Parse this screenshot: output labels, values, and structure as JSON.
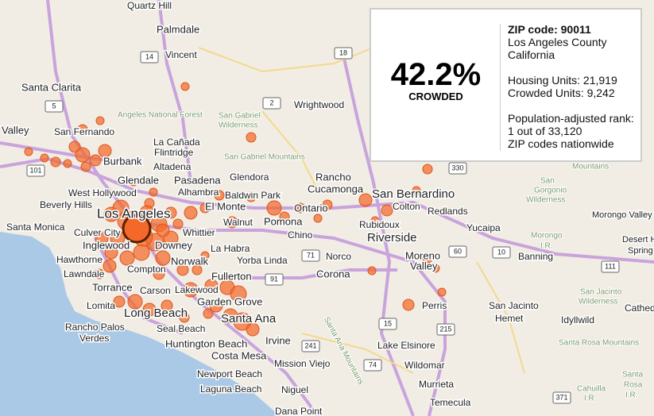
{
  "panel": {
    "value": "42.2%",
    "label": "CROWDED",
    "zip": "ZIP code: 90011",
    "county": "Los Angeles County",
    "state": "California",
    "housing": "Housing Units: 21,919",
    "crowded": "Crowded Units: 9,242",
    "rank_title": "Population-adjusted rank:",
    "rank": "1 out of 33,120",
    "rank_scope": "ZIP codes nationwide"
  },
  "places": [
    "Quartz Hill",
    "Palmdale",
    "Vincent",
    "Santa Clarita",
    "Wrightwood",
    "Valley",
    "San Fernando",
    "La Cañada",
    "Flintridge",
    "Burbank",
    "Altadena",
    "Glendale",
    "Pasadena",
    "Glendora",
    "Rancho",
    "Cucamonga",
    "San Bernardino",
    "West Hollywood",
    "Alhambra",
    "Baldwin Park",
    "Beverly Hills",
    "Los Angeles",
    "El Monte",
    "Colton",
    "Redlands",
    "Pomona",
    "Ontario",
    "Walnut",
    "Rubidoux",
    "Santa Monica",
    "Culver City",
    "Whittier",
    "Chino",
    "Riverside",
    "Yucaipa",
    "Inglewood",
    "Downey",
    "La Habra",
    "Moreno",
    "Valley",
    "Hawthorne",
    "Norwalk",
    "Yorba Linda",
    "Norco",
    "Banning",
    "Lawndale",
    "Compton",
    "Fullerton",
    "Corona",
    "Torrance",
    "Carson",
    "Lakewood",
    "Garden Grove",
    "Lomita",
    "Long Beach",
    "Perris",
    "San Jacinto",
    "Hemet",
    "Santa Ana",
    "Rancho Palos",
    "Verdes",
    "Seal Beach",
    "Irvine",
    "Lake Elsinore",
    "Huntington Beach",
    "Costa Mesa",
    "Mission Viejo",
    "Wildomar",
    "Newport Beach",
    "Laguna Beach",
    "Murrieta",
    "Niguel",
    "Temecula",
    "Dana Point",
    "Morongo Valley",
    "Desert Hot",
    "Spring",
    "Cathed",
    "Idyllwild"
  ],
  "areas": [
    "Angeles National Forest",
    "San Gabriel",
    "Wilderness",
    "San Gabriel Mountains",
    "San",
    "Gorgonio",
    "Wilderness",
    "Mountains",
    "Morongo",
    "I.R.",
    "San Jacinto",
    "Wilderness",
    "Santa Rosa Mountains",
    "Cahuilla",
    "I.R.",
    "Santa",
    "Rosa",
    "I.R.",
    "Santa Ana Mountains"
  ],
  "shields": [
    "14",
    "18",
    "2",
    "5",
    "101",
    "330",
    "71",
    "91",
    "60",
    "10",
    "111",
    "15",
    "215",
    "241",
    "74",
    "371"
  ]
}
